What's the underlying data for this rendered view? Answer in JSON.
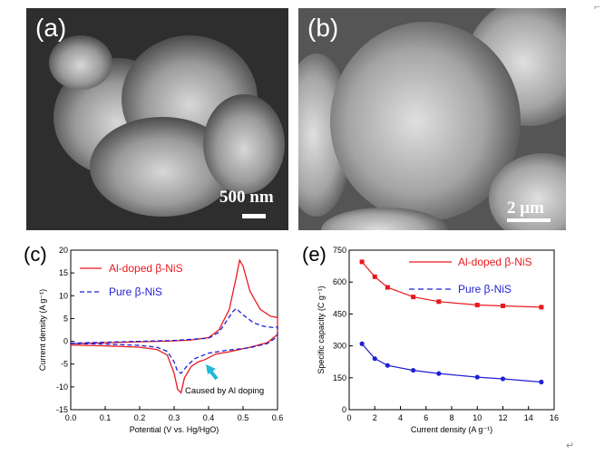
{
  "figure": {
    "panel_a": {
      "letter": "(a)",
      "scale_label": "500 nm"
    },
    "panel_b": {
      "letter": "(b)",
      "scale_label": "2 μm"
    },
    "panel_c": {
      "letter": "(c)"
    },
    "panel_e": {
      "letter": "(e)"
    },
    "trailing_mark": "↵"
  },
  "colors": {
    "red": "#e8191e",
    "blue": "#1f1fd6",
    "cyan": "#20b8d8"
  },
  "chart_data": [
    {
      "type": "line",
      "id": "cv",
      "xlabel": "Potential (V vs. Hg/HgO)",
      "ylabel": "Current density (A g⁻¹)",
      "xlim": [
        0.0,
        0.6
      ],
      "ylim": [
        -15,
        20
      ],
      "xticks": [
        "0.0",
        "0.1",
        "0.2",
        "0.3",
        "0.4",
        "0.5",
        "0.6"
      ],
      "yticks": [
        "-15",
        "-10",
        "-5",
        "0",
        "5",
        "10",
        "15",
        "20"
      ],
      "annotation": "Caused by Al doping",
      "legend_position": "top-left",
      "series": [
        {
          "name": "Al-doped β-NiS",
          "style": "solid",
          "color": "#e8191e",
          "anodic": [
            [
              0.0,
              -0.5
            ],
            [
              0.1,
              -0.3
            ],
            [
              0.2,
              -0.1
            ],
            [
              0.3,
              0.1
            ],
            [
              0.35,
              0.3
            ],
            [
              0.4,
              0.8
            ],
            [
              0.43,
              2.5
            ],
            [
              0.46,
              7
            ],
            [
              0.48,
              14
            ],
            [
              0.49,
              17.8
            ],
            [
              0.5,
              16.5
            ],
            [
              0.52,
              11
            ],
            [
              0.55,
              7
            ],
            [
              0.58,
              5.5
            ],
            [
              0.6,
              5.2
            ]
          ],
          "cathodic": [
            [
              0.6,
              5.2
            ],
            [
              0.6,
              1.5
            ],
            [
              0.57,
              -0.3
            ],
            [
              0.52,
              -1.3
            ],
            [
              0.46,
              -2.3
            ],
            [
              0.42,
              -2.8
            ],
            [
              0.39,
              -4
            ],
            [
              0.37,
              -4.5
            ],
            [
              0.35,
              -5.5
            ],
            [
              0.33,
              -8
            ],
            [
              0.32,
              -11.3
            ],
            [
              0.31,
              -10.5
            ],
            [
              0.3,
              -7
            ],
            [
              0.28,
              -3
            ],
            [
              0.25,
              -1.8
            ],
            [
              0.2,
              -1.3
            ],
            [
              0.1,
              -1
            ],
            [
              0.0,
              -0.8
            ]
          ]
        },
        {
          "name": "Pure β-NiS",
          "style": "dashed",
          "color": "#1f1fd6",
          "anodic": [
            [
              0.0,
              -0.4
            ],
            [
              0.1,
              -0.2
            ],
            [
              0.2,
              0.0
            ],
            [
              0.3,
              0.2
            ],
            [
              0.4,
              0.7
            ],
            [
              0.43,
              2.0
            ],
            [
              0.45,
              4.2
            ],
            [
              0.47,
              6.5
            ],
            [
              0.48,
              7.2
            ],
            [
              0.5,
              5.8
            ],
            [
              0.53,
              4.1
            ],
            [
              0.56,
              3.3
            ],
            [
              0.59,
              3.0
            ],
            [
              0.6,
              3.2
            ]
          ],
          "cathodic": [
            [
              0.6,
              3.2
            ],
            [
              0.6,
              1.0
            ],
            [
              0.57,
              -0.5
            ],
            [
              0.52,
              -1.4
            ],
            [
              0.45,
              -2.0
            ],
            [
              0.4,
              -2.6
            ],
            [
              0.36,
              -3.8
            ],
            [
              0.34,
              -5.2
            ],
            [
              0.32,
              -7.0
            ],
            [
              0.31,
              -6.6
            ],
            [
              0.3,
              -4.5
            ],
            [
              0.28,
              -2.2
            ],
            [
              0.25,
              -1.3
            ],
            [
              0.2,
              -0.9
            ],
            [
              0.1,
              -0.6
            ],
            [
              0.0,
              -0.5
            ]
          ]
        }
      ]
    },
    {
      "type": "line",
      "id": "rate",
      "xlabel": "Current density (A g⁻¹)",
      "ylabel": "Specific capacity (C g⁻¹)",
      "xlim": [
        0,
        16
      ],
      "ylim": [
        0,
        750
      ],
      "xticks": [
        "0",
        "2",
        "4",
        "6",
        "8",
        "10",
        "12",
        "14",
        "16"
      ],
      "yticks": [
        "0",
        "150",
        "300",
        "450",
        "600",
        "750"
      ],
      "legend_position": "top-right",
      "series": [
        {
          "name": "Al-doped β-NiS",
          "style": "solid",
          "color": "#e8191e",
          "marker": "square",
          "x": [
            1,
            2,
            3,
            5,
            7,
            10,
            12,
            15
          ],
          "y": [
            695,
            625,
            575,
            530,
            508,
            492,
            488,
            482
          ]
        },
        {
          "name": "Pure β-NiS",
          "style": "dashed",
          "color": "#1f1fd6",
          "marker": "circle",
          "x": [
            1,
            2,
            3,
            5,
            7,
            10,
            12,
            15
          ],
          "y": [
            310,
            240,
            208,
            185,
            170,
            153,
            145,
            130
          ]
        }
      ]
    }
  ]
}
